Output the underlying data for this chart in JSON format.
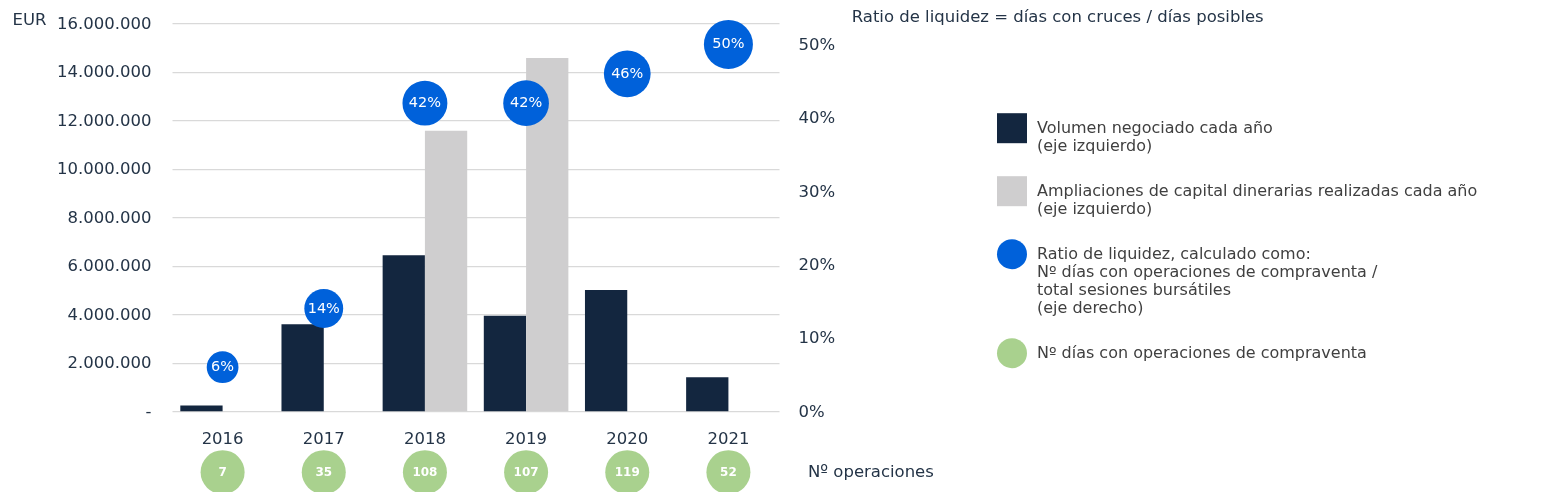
{
  "chart_data": [
    {
      "type": "bar",
      "ylabel": "EUR",
      "categories": [
        "2016",
        "2017",
        "2018",
        "2019",
        "2020",
        "2021"
      ],
      "series": [
        {
          "name": "Volumen negociado cada año (eje izquierdo)",
          "color": "#13263f",
          "values": [
            230000,
            3590000,
            6430000,
            3940000,
            5000000,
            1400000
          ]
        },
        {
          "name": "Ampliaciones de capital dinerarias realizadas cada año (eje izquierdo)",
          "color": "#cfcecf",
          "values": [
            null,
            null,
            11560000,
            14570000,
            null,
            null
          ]
        },
        {
          "name": "Ratio de liquidez, calculado como: Nº días con operaciones de compraventa / total sesiones bursátiles (eje derecho)",
          "type": "bubble",
          "axis": "y2",
          "color": "#0061da",
          "values": [
            6,
            14,
            42,
            42,
            46,
            50
          ],
          "sizes": [
            0.42,
            0.63,
            0.84,
            0.87,
            0.91,
            1
          ],
          "value_labels": [
            "6%",
            "14%",
            "42%",
            "42%",
            "46%",
            "50%"
          ]
        }
      ],
      "ylim": [
        0,
        16000000
      ],
      "yticks": [
        {
          "value": 0,
          "label": "-"
        },
        {
          "value": 2000000,
          "label": "2.000.000"
        },
        {
          "value": 4000000,
          "label": "4.000.000"
        },
        {
          "value": 6000000,
          "label": "6.000.000"
        },
        {
          "value": 8000000,
          "label": "8.000.000"
        },
        {
          "value": 10000000,
          "label": "10.000.000"
        },
        {
          "value": 12000000,
          "label": "12.000.000"
        },
        {
          "value": 14000000,
          "label": "14.000.000"
        },
        {
          "value": 16000000,
          "label": "16.000.000"
        }
      ],
      "y2lim": [
        0,
        52.9
      ],
      "y2ticks": [
        {
          "value": 0,
          "label": "0%"
        },
        {
          "value": 10,
          "label": "10%"
        },
        {
          "value": 20,
          "label": "20%"
        },
        {
          "value": 30,
          "label": "30%"
        },
        {
          "value": 40,
          "label": "40%"
        },
        {
          "value": 50,
          "label": "50%"
        }
      ],
      "grid": "y",
      "legend": "right",
      "annotations": [
        "Ratio de liquidez = días con cruces / días posibles"
      ]
    },
    {
      "type": "other",
      "series": [
        {
          "name": "Nº días con operaciones de compraventa",
          "color": "#a9d18e",
          "values": [
            7,
            35,
            108,
            107,
            119,
            52
          ]
        }
      ],
      "data_labels": true,
      "legend": "right",
      "annotations": [
        "Nº operaciones"
      ]
    }
  ]
}
